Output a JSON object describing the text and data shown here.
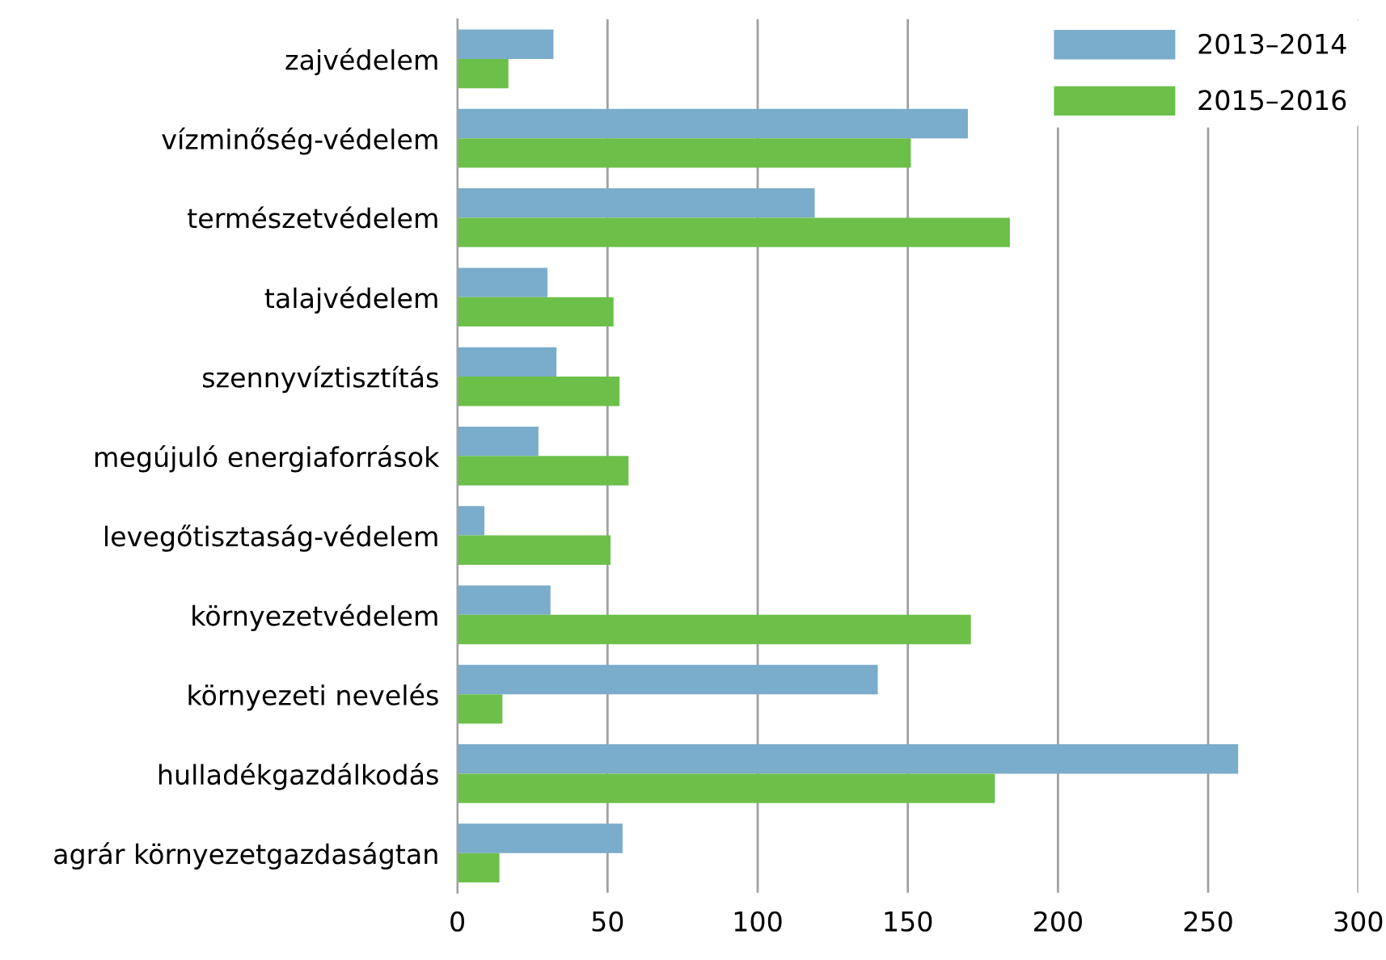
{
  "chart_data": {
    "type": "bar",
    "orientation": "horizontal",
    "categories": [
      "zajvédelem",
      "vízminőség-védelem",
      "természetvédelem",
      "talajvédelem",
      "szennyvíztisztítás",
      "megújuló energiaforrások",
      "levegőtisztaság-védelem",
      "környezetvédelem",
      "környezeti nevelés",
      "hulladékgazdálkodás",
      "agrár környezetgazdaságtan"
    ],
    "series": [
      {
        "name": "2013–2014",
        "color": "#7aaccb",
        "values": [
          32,
          170,
          119,
          30,
          33,
          27,
          9,
          31,
          140,
          260,
          55
        ]
      },
      {
        "name": "2015–2016",
        "color": "#6cc04a",
        "values": [
          17,
          151,
          184,
          52,
          54,
          57,
          51,
          171,
          15,
          179,
          14
        ]
      }
    ],
    "xlim": [
      0,
      300
    ],
    "xticks": [
      0,
      50,
      100,
      150,
      200,
      250,
      300
    ],
    "grid": "x",
    "legend": "top right"
  }
}
